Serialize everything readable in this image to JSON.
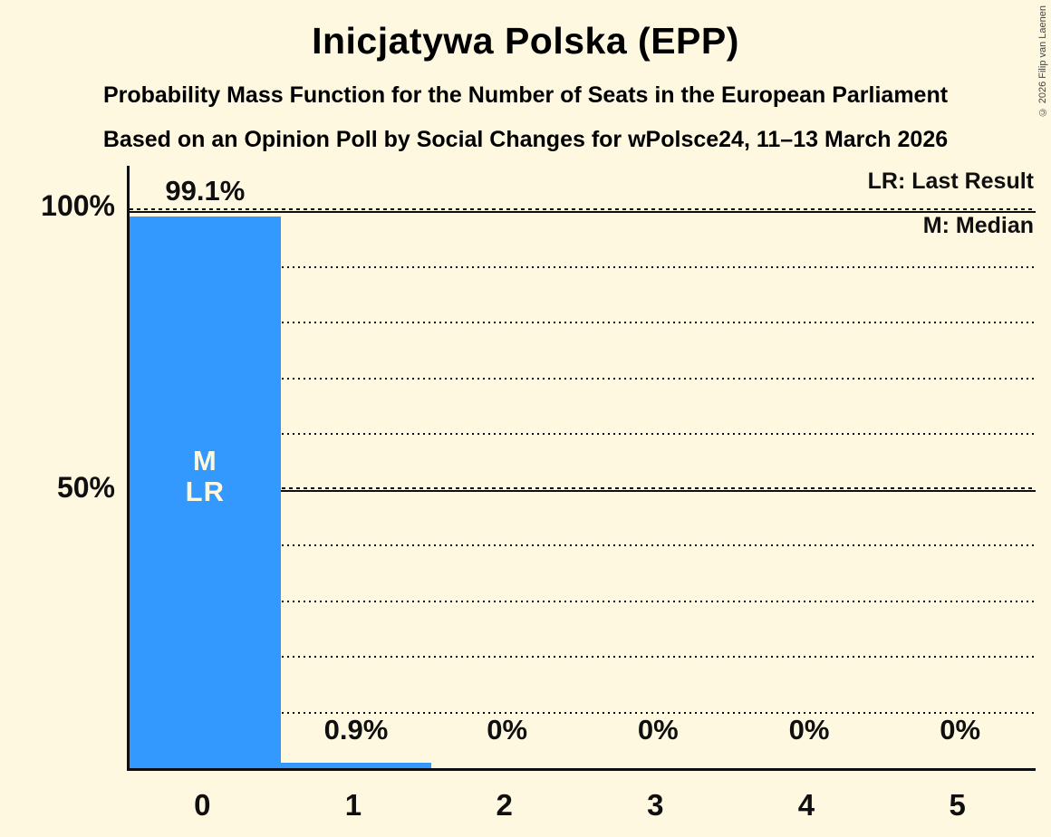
{
  "title": "Inicjatywa Polska (EPP)",
  "subtitle1": "Probability Mass Function for the Number of Seats in the European Parliament",
  "subtitle2": "Based on an Opinion Poll by Social Changes for wPolsce24, 11–13 March 2026",
  "copyright": "© 2026 Filip van Laenen",
  "legend": {
    "last_result": "LR: Last Result",
    "median": "M: Median"
  },
  "y_axis": {
    "top_label": "100%",
    "mid_label": "50%"
  },
  "colors": {
    "background": "#FFF8E0",
    "bar": "#3399FF",
    "text": "#0f0f0f",
    "marker_text": "#FFF8E0"
  },
  "chart_data": {
    "type": "bar",
    "title": "Inicjatywa Polska (EPP)",
    "categories": [
      "0",
      "1",
      "2",
      "3",
      "4",
      "5"
    ],
    "values": [
      99.1,
      0.9,
      0,
      0,
      0,
      0
    ],
    "value_labels": [
      "99.1%",
      "0.9%",
      "0%",
      "0%",
      "0%",
      "0%"
    ],
    "xlabel": "",
    "ylabel": "",
    "ylim": [
      0,
      100
    ],
    "y_tick_labels": [
      "100%",
      "50%"
    ],
    "gridlines": {
      "solid_pcts": [
        50,
        100
      ],
      "dotted_pcts": [
        10,
        20,
        30,
        40,
        60,
        70,
        80,
        90
      ]
    },
    "legend_position": "top-right",
    "markers": {
      "labels": [
        "M",
        "LR"
      ],
      "bar_index": 0
    },
    "median": 0,
    "last_result": 0
  }
}
